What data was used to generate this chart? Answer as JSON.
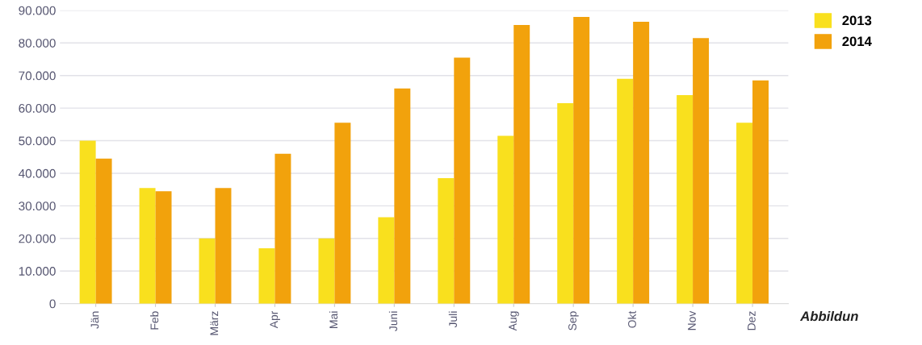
{
  "chart_data": {
    "type": "bar",
    "categories": [
      "Jän",
      "Feb",
      "März",
      "Apr",
      "Mai",
      "Juni",
      "Juli",
      "Aug",
      "Sep",
      "Okt",
      "Nov",
      "Dez"
    ],
    "series": [
      {
        "name": "2013",
        "color": "#f9e01e",
        "values": [
          50000,
          35500,
          20000,
          17000,
          20000,
          26500,
          38500,
          51500,
          61500,
          69000,
          64000,
          55500
        ]
      },
      {
        "name": "2014",
        "color": "#f2a20c",
        "values": [
          44500,
          34500,
          35500,
          46000,
          55500,
          66000,
          75500,
          85500,
          88000,
          86500,
          81500,
          68500
        ]
      }
    ],
    "ylim": [
      0,
      90000
    ],
    "yticks": [
      {
        "value": 0,
        "label": "0"
      },
      {
        "value": 10000,
        "label": "10.000"
      },
      {
        "value": 20000,
        "label": "20.000"
      },
      {
        "value": 30000,
        "label": "30.000"
      },
      {
        "value": 40000,
        "label": "40.000"
      },
      {
        "value": 50000,
        "label": "50.000"
      },
      {
        "value": 60000,
        "label": "60.000"
      },
      {
        "value": 70000,
        "label": "70.000"
      },
      {
        "value": 80000,
        "label": "80.000"
      },
      {
        "value": 90000,
        "label": "90.000"
      }
    ],
    "grid": "y",
    "legend": "top right",
    "annotations": [
      "Abbildun"
    ]
  }
}
